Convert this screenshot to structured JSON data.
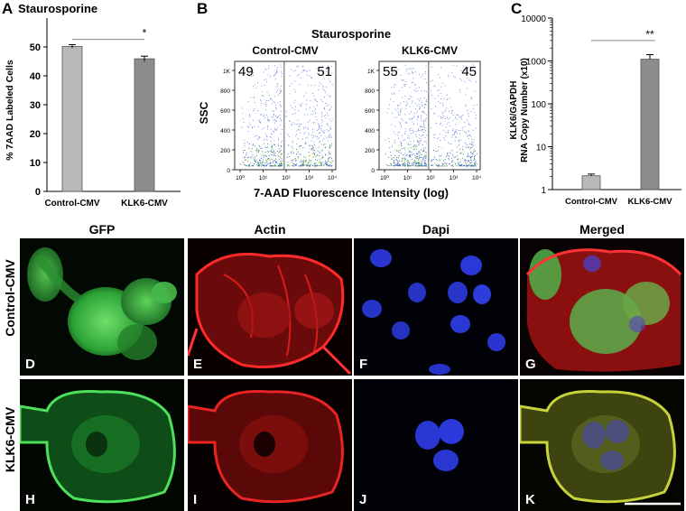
{
  "panels": {
    "A": {
      "letter": "A",
      "title": "Staurosporine"
    },
    "B": {
      "letter": "B",
      "title": "Staurosporine"
    },
    "C": {
      "letter": "C"
    }
  },
  "chart_data": [
    {
      "type": "bar",
      "panel": "A",
      "title": "Staurosporine",
      "categories": [
        "Control-CMV",
        "KLK6-CMV"
      ],
      "values": [
        50.2,
        45.9
      ],
      "errors": [
        0.6,
        0.9
      ],
      "ylabel": "% 7AAD Labeled Cells",
      "xlabel": "",
      "ylim": [
        0,
        60
      ],
      "yticks": [
        0,
        10,
        20,
        30,
        40,
        50
      ],
      "significance": "*",
      "bar_colors": [
        "#b8b8b8",
        "#8c8c8c"
      ]
    },
    {
      "type": "scatter",
      "panel": "B",
      "title": "Staurosporine",
      "xlabel": "7-AAD Fluorescence Intensity (log)",
      "ylabel": "SSC",
      "yticks": [
        "0",
        "200",
        "400",
        "600",
        "800",
        "1K"
      ],
      "xticks": [
        "10⁰",
        "10¹",
        "10²",
        "10³",
        "10⁴"
      ],
      "subplots": [
        {
          "name": "Control-CMV",
          "left_percent": 49,
          "right_percent": 51
        },
        {
          "name": "KLK6-CMV",
          "left_percent": 55,
          "right_percent": 45
        }
      ]
    },
    {
      "type": "bar",
      "panel": "C",
      "categories": [
        "Control-CMV",
        "KLK6-CMV"
      ],
      "values": [
        2.1,
        1100
      ],
      "errors": [
        0.2,
        300
      ],
      "ylabel": "KLK6/GAPDH RNA Copy Number (x10)",
      "ylabel_lines": [
        "KLK6/GAPDH",
        "RNA Copy Number (x10)"
      ],
      "xlabel": "",
      "yscale": "log",
      "ylim": [
        1,
        10000
      ],
      "yticks": [
        "1",
        "10",
        "100",
        "1000",
        "10000"
      ],
      "significance": "**",
      "bar_colors": [
        "#b8b8b8",
        "#8c8c8c"
      ]
    }
  ],
  "microscopy": {
    "columns": [
      "GFP",
      "Actin",
      "Dapi",
      "Merged"
    ],
    "rows": [
      "Control-CMV",
      "KLK6-CMV"
    ],
    "panel_letters": [
      [
        "D",
        "E",
        "F",
        "G"
      ],
      [
        "H",
        "I",
        "J",
        "K"
      ]
    ]
  },
  "colors": {
    "gfp": "#3fbf4a",
    "actin": "#e02020",
    "dapi": "#2a3ad8",
    "merged": "#9aa83a"
  }
}
